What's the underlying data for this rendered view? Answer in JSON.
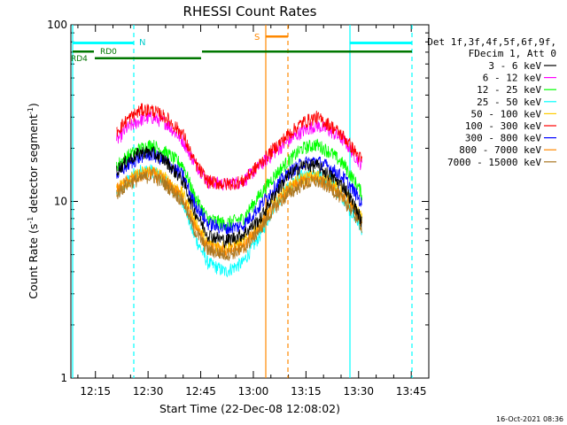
{
  "chart_data": {
    "type": "line",
    "title": "RHESSI Count Rates",
    "xlabel": "Start Time (22-Dec-08 12:08:02)",
    "ylabel_main": "Count Rate (s",
    "ylabel_sup1": "-1",
    "ylabel_mid": " detector segment",
    "ylabel_sup2": "-1",
    "ylabel_end": ")",
    "yscale": "log",
    "ylim": [
      1,
      100
    ],
    "yticks": [
      "1",
      "10",
      "100"
    ],
    "xlim_minutes": [
      728,
      830
    ],
    "xticks": [
      "12:15",
      "12:30",
      "12:45",
      "13:00",
      "13:15",
      "13:30",
      "13:45"
    ],
    "xtick_minutes": [
      735,
      750,
      765,
      780,
      795,
      810,
      825
    ],
    "timestamp": "16-Oct-2021 08:36",
    "legend_header": [
      "Det 1f,3f,4f,5f,6f,9f,",
      "FDecim 1, Att 0"
    ],
    "series": [
      {
        "name": "3 - 6 keV",
        "color": "#000000",
        "x": [
          741,
          744,
          748,
          751,
          755,
          760,
          763,
          767,
          772,
          777,
          782,
          786,
          790,
          794,
          798,
          802,
          806,
          810,
          811
        ],
        "values": [
          15,
          17,
          19,
          19,
          17,
          13,
          9,
          6.5,
          6,
          6.5,
          8,
          11,
          14,
          16,
          16,
          14,
          12,
          8.5,
          7.5
        ]
      },
      {
        "name": "6 - 12 keV",
        "color": "#ff00ff",
        "x": [
          741,
          744,
          748,
          751,
          755,
          760,
          763,
          767,
          772,
          777,
          782,
          786,
          790,
          794,
          798,
          802,
          806,
          810,
          811
        ],
        "values": [
          22,
          26,
          29,
          30,
          28,
          22,
          17,
          13,
          12.5,
          13,
          16,
          19,
          22,
          25,
          27,
          25,
          22,
          17,
          16
        ]
      },
      {
        "name": "12 - 25 keV",
        "color": "#00ff00",
        "x": [
          741,
          744,
          748,
          751,
          755,
          760,
          763,
          767,
          772,
          777,
          782,
          786,
          790,
          794,
          798,
          802,
          806,
          810,
          811
        ],
        "values": [
          16,
          18,
          20,
          21,
          19,
          16,
          11,
          8,
          7.5,
          8,
          11,
          14,
          17,
          20,
          21,
          19,
          16,
          12,
          11
        ]
      },
      {
        "name": "25 - 50 keV",
        "color": "#00ffff",
        "x": [
          741,
          744,
          748,
          751,
          755,
          760,
          763,
          767,
          772,
          777,
          782,
          786,
          790,
          794,
          798,
          802,
          806,
          810,
          811
        ],
        "values": [
          11,
          13,
          15,
          15,
          13,
          10,
          6.5,
          4.5,
          4,
          4.5,
          6.5,
          9.5,
          12,
          14,
          14,
          13,
          10,
          7.5,
          7
        ]
      },
      {
        "name": "50 - 100 keV",
        "color": "#ffcc00",
        "x": [
          741,
          744,
          748,
          751,
          755,
          760,
          763,
          767,
          772,
          777,
          782,
          786,
          790,
          794,
          798,
          802,
          806,
          810,
          811
        ],
        "values": [
          12,
          13,
          14.5,
          15,
          13.5,
          11,
          8,
          5.8,
          5.5,
          5.8,
          7.5,
          10,
          12,
          13.5,
          14,
          13,
          11,
          8.5,
          8
        ]
      },
      {
        "name": "100 - 300 keV",
        "color": "#ff0000",
        "x": [
          741,
          744,
          748,
          751,
          755,
          760,
          763,
          767,
          772,
          777,
          782,
          786,
          790,
          794,
          798,
          802,
          806,
          810,
          811
        ],
        "values": [
          25,
          29,
          33,
          33,
          30,
          24,
          17,
          13,
          12.5,
          13,
          16.5,
          20,
          24,
          28,
          30,
          27,
          23,
          18,
          17
        ]
      },
      {
        "name": "300 - 800 keV",
        "color": "#0000ff",
        "x": [
          741,
          744,
          748,
          751,
          755,
          760,
          763,
          767,
          772,
          777,
          782,
          786,
          790,
          794,
          798,
          802,
          806,
          810,
          811
        ],
        "values": [
          14,
          16,
          18,
          18.5,
          17,
          14,
          10,
          7.5,
          7,
          7.3,
          9.5,
          12,
          14.5,
          16.5,
          17,
          15.5,
          13.5,
          10.5,
          9.5
        ]
      },
      {
        "name": "800 - 7000 keV",
        "color": "#ff8800",
        "x": [
          741,
          744,
          748,
          751,
          755,
          760,
          763,
          767,
          772,
          777,
          782,
          786,
          790,
          794,
          798,
          802,
          806,
          810,
          811
        ],
        "values": [
          11.5,
          13,
          14,
          14.5,
          13,
          10.5,
          7.5,
          5.5,
          5.2,
          5.5,
          7.2,
          9.5,
          11.5,
          13,
          13.5,
          12.5,
          10.5,
          8,
          7.5
        ]
      },
      {
        "name": "7000 - 15000 keV",
        "color": "#aa7722",
        "x": [
          741,
          744,
          748,
          751,
          755,
          760,
          763,
          767,
          772,
          777,
          782,
          786,
          790,
          794,
          798,
          802,
          806,
          810,
          811
        ],
        "values": [
          11,
          12.5,
          13.5,
          14,
          12.5,
          10,
          7,
          5.3,
          5,
          5.3,
          7,
          9.2,
          11,
          12.5,
          13,
          12,
          10,
          7.8,
          7.2
        ]
      }
    ],
    "annotations": {
      "night_label": "N",
      "saa_label": "S",
      "rd0_label": "RD0",
      "rd4_label": "RD4"
    }
  }
}
